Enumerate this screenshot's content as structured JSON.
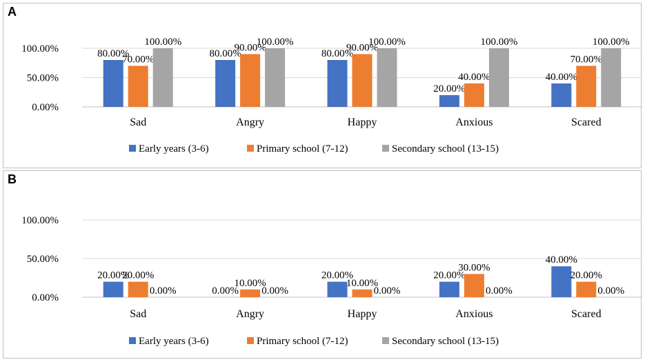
{
  "chart_data": [
    {
      "panel": "A",
      "type": "bar",
      "categories": [
        "Sad",
        "Angry",
        "Happy",
        "Anxious",
        "Scared"
      ],
      "series": [
        {
          "name": "Early years (3-6)",
          "color": "#4472C4",
          "values": [
            80,
            80,
            80,
            20,
            40
          ]
        },
        {
          "name": "Primary school (7-12)",
          "color": "#ED7D31",
          "values": [
            70,
            90,
            90,
            40,
            70
          ]
        },
        {
          "name": "Secondary school (13-15)",
          "color": "#A5A5A5",
          "values": [
            100,
            100,
            100,
            100,
            100
          ]
        }
      ],
      "data_labels": [
        [
          "80.00%",
          "80.00%",
          "80.00%",
          "20.00%",
          "40.00%"
        ],
        [
          "70.00%",
          "90.00%",
          "90.00%",
          "40.00%",
          "70.00%"
        ],
        [
          "100.00%",
          "100.00%",
          "100.00%",
          "100.00%",
          "100.00%"
        ]
      ],
      "y_ticks": [
        "0.00%",
        "50.00%",
        "100.00%"
      ],
      "y_tick_values": [
        0,
        50,
        100
      ],
      "ylim": [
        0,
        100
      ],
      "legend_position": "bottom"
    },
    {
      "panel": "B",
      "type": "bar",
      "categories": [
        "Sad",
        "Angry",
        "Happy",
        "Anxious",
        "Scared"
      ],
      "series": [
        {
          "name": "Early years (3-6)",
          "color": "#4472C4",
          "values": [
            20,
            0,
            20,
            20,
            40
          ]
        },
        {
          "name": "Primary school (7-12)",
          "color": "#ED7D31",
          "values": [
            20,
            10,
            10,
            30,
            20
          ]
        },
        {
          "name": "Secondary school (13-15)",
          "color": "#A5A5A5",
          "values": [
            0,
            0,
            0,
            0,
            0
          ]
        }
      ],
      "data_labels": [
        [
          "20.00%",
          "0.00%",
          "20.00%",
          "20.00%",
          "40.00%"
        ],
        [
          "20.00%",
          "10.00%",
          "10.00%",
          "30.00%",
          "20.00%"
        ],
        [
          "0.00%",
          "0.00%",
          "0.00%",
          "0.00%",
          "0.00%"
        ]
      ],
      "y_ticks": [
        "0.00%",
        "50.00%",
        "100.00%"
      ],
      "y_tick_values": [
        0,
        50,
        100
      ],
      "ylim": [
        0,
        100
      ],
      "legend_position": "bottom"
    }
  ]
}
